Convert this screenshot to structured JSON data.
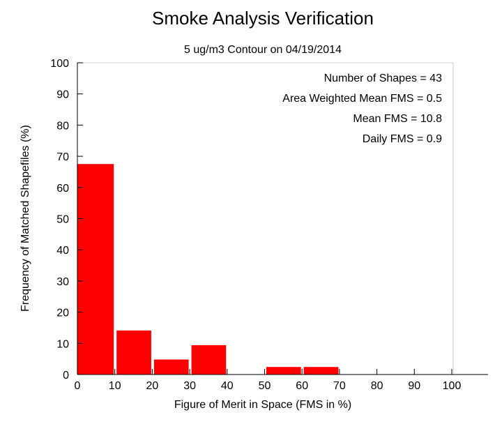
{
  "chart_data": {
    "type": "bar",
    "title": "Smoke Analysis Verification",
    "subtitle": "5 ug/m3 Contour on 04/19/2014",
    "xlabel": "Figure of Merit in Space (FMS in %)",
    "ylabel": "Frequency of Matched Shapefiles (%)",
    "xlim": [
      0,
      110
    ],
    "ylim": [
      0,
      100
    ],
    "xticks": [
      "0",
      "10",
      "20",
      "30",
      "40",
      "50",
      "60",
      "70",
      "80",
      "90",
      "100"
    ],
    "yticks": [
      "0",
      "10",
      "20",
      "30",
      "40",
      "50",
      "60",
      "70",
      "80",
      "90",
      "100"
    ],
    "bins": [
      {
        "start": 0,
        "end": 10,
        "value": 67.4
      },
      {
        "start": 10,
        "end": 20,
        "value": 14.0
      },
      {
        "start": 20,
        "end": 30,
        "value": 4.7
      },
      {
        "start": 30,
        "end": 40,
        "value": 9.3
      },
      {
        "start": 40,
        "end": 50,
        "value": 0
      },
      {
        "start": 50,
        "end": 60,
        "value": 2.3
      },
      {
        "start": 60,
        "end": 70,
        "value": 2.3
      },
      {
        "start": 70,
        "end": 80,
        "value": 0
      },
      {
        "start": 80,
        "end": 90,
        "value": 0
      },
      {
        "start": 90,
        "end": 100,
        "value": 0
      },
      {
        "start": 100,
        "end": 110,
        "value": 0
      }
    ],
    "bar_color": "#ff0000",
    "grid": false,
    "annotations": [
      "Number of Shapes = 43",
      "Area Weighted Mean FMS = 0.5",
      "Mean FMS = 10.8",
      "Daily FMS = 0.9"
    ]
  }
}
